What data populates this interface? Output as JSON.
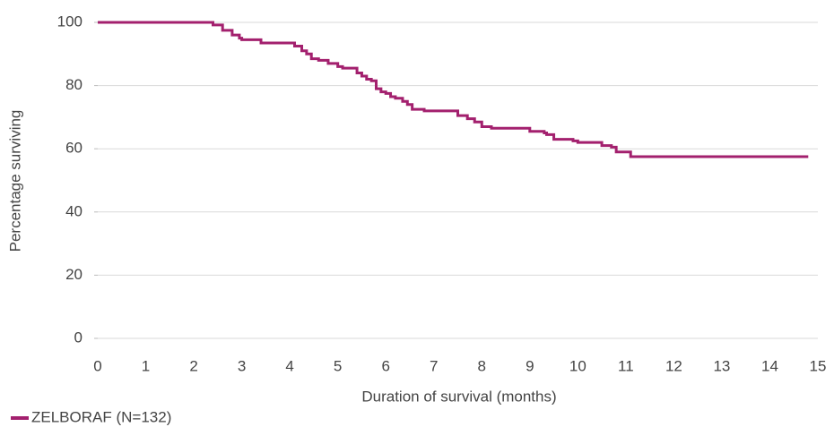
{
  "chart_data": {
    "type": "line",
    "step": "post",
    "x_label": "Duration of survival (months)",
    "y_label": "Percentage surviving",
    "xlim": [
      0,
      15
    ],
    "xticks": [
      0,
      1,
      2,
      3,
      4,
      5,
      6,
      7,
      8,
      9,
      10,
      11,
      12,
      13,
      14,
      15
    ],
    "ylim": [
      0,
      100
    ],
    "yticks": [
      0,
      20,
      40,
      60,
      80,
      100
    ],
    "grid": true,
    "legend": "bottom-left",
    "series": [
      {
        "name": "ZELBORAF (N=132)",
        "color": "#a3206e",
        "x": [
          0,
          2.4,
          2.6,
          2.8,
          2.95,
          3.0,
          3.4,
          4.1,
          4.25,
          4.35,
          4.45,
          4.6,
          4.8,
          5.0,
          5.1,
          5.4,
          5.5,
          5.6,
          5.7,
          5.8,
          5.9,
          6.0,
          6.1,
          6.2,
          6.35,
          6.45,
          6.55,
          6.8,
          7.5,
          7.7,
          7.85,
          8.0,
          8.2,
          9.0,
          9.3,
          9.35,
          9.5,
          9.9,
          10.0,
          10.5,
          10.7,
          10.8,
          11.1,
          14.8
        ],
        "values": [
          100,
          99.2,
          97.5,
          96,
          95,
          94.5,
          93.5,
          92.5,
          91,
          90,
          88.5,
          88,
          87,
          86,
          85.5,
          84,
          83,
          82,
          81.5,
          79,
          78,
          77.5,
          76.5,
          76,
          75,
          74,
          72.5,
          72,
          70.5,
          69.5,
          68.5,
          67,
          66.5,
          65.5,
          65,
          64.5,
          63,
          62.5,
          62,
          61,
          60.5,
          59,
          57.5,
          57.5
        ]
      }
    ]
  }
}
